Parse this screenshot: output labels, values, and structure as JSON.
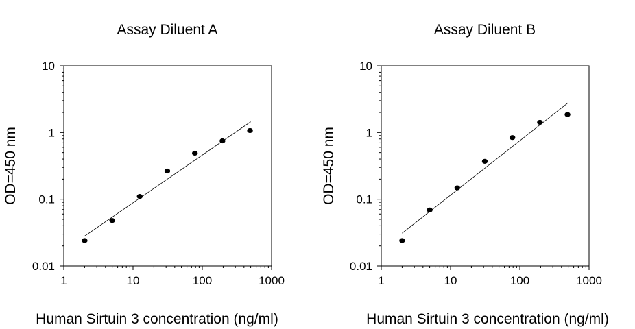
{
  "chart_data": [
    {
      "type": "scatter",
      "title": "Assay Diluent A",
      "xlabel": "Human Sirtuin 3 concentration (ng/ml)",
      "ylabel": "OD=450 nm",
      "x_scale": "log",
      "y_scale": "log",
      "xlim": [
        1,
        1000
      ],
      "ylim": [
        0.01,
        10
      ],
      "x_ticks": [
        {
          "value": 1,
          "label": "1"
        },
        {
          "value": 10,
          "label": "10"
        },
        {
          "value": 100,
          "label": "100"
        },
        {
          "value": 1000,
          "label": "1000"
        }
      ],
      "y_ticks": [
        {
          "value": 0.01,
          "label": "0.01"
        },
        {
          "value": 0.1,
          "label": "0.1"
        },
        {
          "value": 1,
          "label": "1"
        },
        {
          "value": 10,
          "label": "10"
        }
      ],
      "grid": false,
      "series": [
        {
          "x": [
            2,
            5,
            12.5,
            31.25,
            78.13,
            195.3,
            488.3
          ],
          "y": [
            0.024,
            0.048,
            0.11,
            0.265,
            0.49,
            0.75,
            1.07
          ]
        }
      ],
      "fit_line": {
        "x": [
          2,
          500
        ],
        "y": [
          0.028,
          1.45
        ]
      }
    },
    {
      "type": "scatter",
      "title": "Assay Diluent B",
      "xlabel": "Human Sirtuin 3 concentration (ng/ml)",
      "ylabel": "OD=450 nm",
      "x_scale": "log",
      "y_scale": "log",
      "xlim": [
        1,
        1000
      ],
      "ylim": [
        0.01,
        10
      ],
      "x_ticks": [
        {
          "value": 1,
          "label": "1"
        },
        {
          "value": 10,
          "label": "10"
        },
        {
          "value": 100,
          "label": "100"
        },
        {
          "value": 1000,
          "label": "1000"
        }
      ],
      "y_ticks": [
        {
          "value": 0.01,
          "label": "0.01"
        },
        {
          "value": 0.1,
          "label": "0.1"
        },
        {
          "value": 1,
          "label": "1"
        },
        {
          "value": 10,
          "label": "10"
        }
      ],
      "grid": false,
      "series": [
        {
          "x": [
            2,
            5,
            12.5,
            31.25,
            78.13,
            195.3,
            488.3
          ],
          "y": [
            0.024,
            0.069,
            0.148,
            0.37,
            0.84,
            1.42,
            1.86
          ]
        }
      ],
      "fit_line": {
        "x": [
          2,
          500
        ],
        "y": [
          0.031,
          2.8
        ]
      }
    }
  ]
}
